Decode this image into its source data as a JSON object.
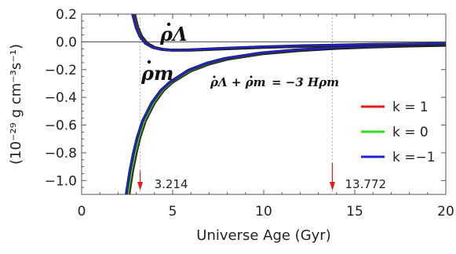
{
  "chart_data": {
    "type": "line",
    "xlabel": "Universe Age (Gyr)",
    "ylabel": "(10⁻²⁹ g cm⁻³s⁻¹)",
    "xlim": [
      0,
      20
    ],
    "ylim": [
      -1.1,
      0.2
    ],
    "xticks": [
      "0",
      "5",
      "10",
      "15",
      "20"
    ],
    "yticks": [
      "0.2",
      "0.0",
      "−0.2",
      "−0.4",
      "−0.6",
      "−0.8",
      "−1.0"
    ],
    "grid": false,
    "legend_position": "right",
    "series": [
      {
        "name": "k = 1",
        "color": "#e41a1c"
      },
      {
        "name": "k = 0",
        "color": "#33dd22"
      },
      {
        "name": "k =−1",
        "color": "#1f22dd"
      }
    ],
    "curves": {
      "rho_m": {
        "k1": {
          "x": [
            2.6,
            2.8,
            3.0,
            3.2,
            3.5,
            4.0,
            4.5,
            5.0,
            6.0,
            7.0,
            8.0,
            10.0,
            12.0,
            14.0,
            16.0,
            18.0,
            20.0
          ],
          "y": [
            -1.1,
            -0.93,
            -0.8,
            -0.69,
            -0.57,
            -0.44,
            -0.35,
            -0.29,
            -0.21,
            -0.16,
            -0.125,
            -0.085,
            -0.062,
            -0.047,
            -0.037,
            -0.03,
            -0.025
          ]
        },
        "k0": {
          "x": [
            2.55,
            2.75,
            2.95,
            3.15,
            3.45,
            3.95,
            4.45,
            4.95,
            5.95,
            6.95,
            7.95,
            9.95,
            11.95,
            13.95,
            15.95,
            17.95,
            20.0
          ],
          "y": [
            -1.1,
            -0.93,
            -0.8,
            -0.69,
            -0.57,
            -0.44,
            -0.35,
            -0.29,
            -0.208,
            -0.158,
            -0.123,
            -0.083,
            -0.06,
            -0.045,
            -0.035,
            -0.028,
            -0.023
          ]
        },
        "kn1": {
          "x": [
            2.45,
            2.65,
            2.85,
            3.05,
            3.35,
            3.85,
            4.35,
            4.85,
            5.85,
            6.85,
            7.85,
            9.85,
            11.85,
            13.85,
            15.85,
            17.85,
            20.0
          ],
          "y": [
            -1.1,
            -0.93,
            -0.8,
            -0.69,
            -0.57,
            -0.44,
            -0.35,
            -0.29,
            -0.205,
            -0.155,
            -0.12,
            -0.08,
            -0.057,
            -0.042,
            -0.032,
            -0.025,
            -0.02
          ]
        }
      },
      "rho_lambda": {
        "k1": {
          "x": [
            2.9,
            3.1,
            3.3,
            3.6,
            4.0,
            4.5,
            5.0,
            6.0,
            7.0,
            8.0,
            10.0,
            12.0,
            14.0,
            16.0,
            18.0,
            20.0
          ],
          "y": [
            0.2,
            0.1,
            0.04,
            -0.01,
            -0.04,
            -0.055,
            -0.06,
            -0.06,
            -0.055,
            -0.05,
            -0.04,
            -0.033,
            -0.027,
            -0.022,
            -0.019,
            -0.016
          ]
        },
        "k0": {
          "x": [
            2.85,
            3.05,
            3.25,
            3.55,
            3.95,
            4.45,
            4.95,
            5.95,
            6.95,
            7.95,
            9.95,
            11.95,
            13.95,
            15.95,
            17.95,
            20.0
          ],
          "y": [
            0.2,
            0.1,
            0.04,
            -0.01,
            -0.04,
            -0.055,
            -0.06,
            -0.059,
            -0.054,
            -0.048,
            -0.038,
            -0.031,
            -0.025,
            -0.02,
            -0.017,
            -0.014
          ]
        },
        "kn1": {
          "x": [
            2.8,
            3.0,
            3.2,
            3.5,
            3.9,
            4.4,
            4.9,
            5.9,
            6.9,
            7.9,
            9.9,
            11.9,
            13.9,
            15.9,
            17.9,
            20.0
          ],
          "y": [
            0.2,
            0.1,
            0.04,
            -0.01,
            -0.04,
            -0.055,
            -0.06,
            -0.058,
            -0.052,
            -0.046,
            -0.036,
            -0.029,
            -0.023,
            -0.018,
            -0.015,
            -0.012
          ]
        }
      }
    },
    "markers": [
      {
        "x": 3.214,
        "label": "3.214"
      },
      {
        "x": 13.772,
        "label": "13.772"
      }
    ],
    "annotations": {
      "rho_lambda": "ρΛ",
      "rho_m": "ρm",
      "relation_left": "ρΛ + ρm",
      "relation_right": "= −3 Hρm"
    }
  }
}
